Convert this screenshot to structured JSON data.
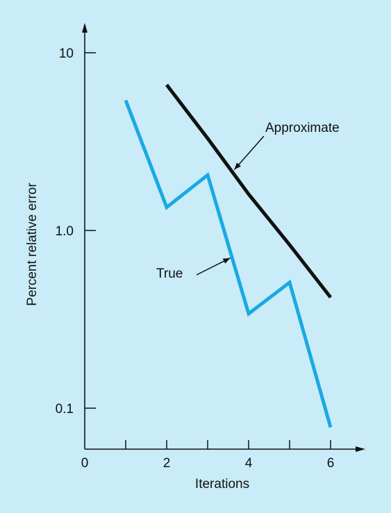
{
  "chart_data": {
    "type": "line",
    "xlabel": "Iterations",
    "ylabel": "Percent relative error",
    "y_scale": "log",
    "xlim": [
      0,
      6.8
    ],
    "ylim": [
      0.05,
      16
    ],
    "x_ticks": [
      1,
      2,
      3,
      4,
      5,
      6
    ],
    "x_tick_labels": [
      "0",
      "2",
      "4",
      "6"
    ],
    "x_tick_label_values": [
      0,
      2,
      4,
      6
    ],
    "y_tick_values": [
      0.1,
      1.0,
      10
    ],
    "y_tick_labels": [
      "0.1",
      "1.0",
      "10"
    ],
    "grid": false,
    "series": [
      {
        "name": "True",
        "color": "#19a9e4",
        "x": [
          1,
          2,
          3,
          4,
          5,
          6
        ],
        "y": [
          5.4,
          1.35,
          2.05,
          0.34,
          0.51,
          0.078
        ]
      },
      {
        "name": "Approximate",
        "color": "#111111",
        "x": [
          2,
          3,
          4,
          5,
          6
        ],
        "y": [
          6.6,
          3.3,
          1.6,
          0.83,
          0.42
        ]
      }
    ],
    "annotations": [
      {
        "text": "Approximate",
        "series": "Approximate",
        "point_x": 3.65,
        "point_y": 2.2
      },
      {
        "text": "True",
        "series": "True",
        "point_x": 3.55,
        "point_y": 0.7
      }
    ]
  }
}
